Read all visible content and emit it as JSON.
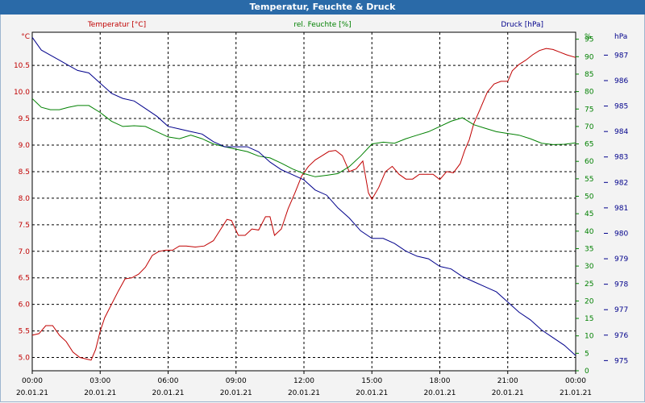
{
  "window": {
    "title": "Temperatur, Feuchte & Druck"
  },
  "chart_data": {
    "type": "line",
    "title": "Temperatur, Feuchte & Druck",
    "x_ticks": [
      {
        "hour": 0,
        "time": "00:00",
        "date": "20.01.21"
      },
      {
        "hour": 3,
        "time": "03:00",
        "date": "20.01.21"
      },
      {
        "hour": 6,
        "time": "06:00",
        "date": "20.01.21"
      },
      {
        "hour": 9,
        "time": "09:00",
        "date": "20.01.21"
      },
      {
        "hour": 12,
        "time": "12:00",
        "date": "20.01.21"
      },
      {
        "hour": 15,
        "time": "15:00",
        "date": "20.01.21"
      },
      {
        "hour": 18,
        "time": "18:00",
        "date": "20.01.21"
      },
      {
        "hour": 21,
        "time": "21:00",
        "date": "20.01.21"
      },
      {
        "hour": 24,
        "time": "00:00",
        "date": "21.01.21"
      }
    ],
    "xlim": [
      0,
      24
    ],
    "axes": {
      "temperature": {
        "unit": "°C",
        "label": "Temperatur [°C]",
        "color": "#c00000",
        "ylim": [
          4.75,
          11.125
        ],
        "ticks": [
          "5.0",
          "5.5",
          "6.0",
          "6.5",
          "7.0",
          "7.5",
          "8.0",
          "8.5",
          "9.0",
          "9.5",
          "10.0",
          "10.5"
        ]
      },
      "humidity": {
        "unit": "%",
        "label": "rel. Feuchte [%]",
        "color": "#008000",
        "ylim": [
          0,
          97
        ],
        "ticks": [
          "0",
          "5",
          "10",
          "15",
          "20",
          "25",
          "30",
          "35",
          "40",
          "45",
          "50",
          "55",
          "60",
          "65",
          "70",
          "75",
          "80",
          "85",
          "90",
          "95",
          "%"
        ]
      },
      "pressure": {
        "unit": "hPa",
        "label": "Druck [hPa]",
        "color": "#00008b",
        "ylim": [
          974.6,
          987.9
        ],
        "ticks": [
          "975",
          "976",
          "977",
          "978",
          "979",
          "980",
          "981",
          "982",
          "983",
          "984",
          "985",
          "986",
          "987"
        ]
      }
    },
    "series": [
      {
        "name": "Temperatur [°C]",
        "axis": "temperature",
        "color": "#c00000",
        "points": [
          [
            0,
            5.42
          ],
          [
            0.3,
            5.45
          ],
          [
            0.6,
            5.6
          ],
          [
            0.9,
            5.6
          ],
          [
            1.2,
            5.42
          ],
          [
            1.5,
            5.3
          ],
          [
            1.8,
            5.1
          ],
          [
            2.1,
            5.0
          ],
          [
            2.4,
            4.97
          ],
          [
            2.6,
            4.95
          ],
          [
            2.8,
            5.15
          ],
          [
            3.0,
            5.5
          ],
          [
            3.2,
            5.75
          ],
          [
            3.5,
            6.0
          ],
          [
            3.8,
            6.25
          ],
          [
            4.1,
            6.48
          ],
          [
            4.4,
            6.5
          ],
          [
            4.7,
            6.57
          ],
          [
            5.0,
            6.7
          ],
          [
            5.3,
            6.92
          ],
          [
            5.6,
            7.0
          ],
          [
            5.9,
            7.02
          ],
          [
            6.2,
            7.02
          ],
          [
            6.5,
            7.1
          ],
          [
            6.8,
            7.1
          ],
          [
            7.2,
            7.08
          ],
          [
            7.6,
            7.1
          ],
          [
            8.0,
            7.2
          ],
          [
            8.3,
            7.4
          ],
          [
            8.6,
            7.6
          ],
          [
            8.8,
            7.58
          ],
          [
            9.1,
            7.3
          ],
          [
            9.4,
            7.3
          ],
          [
            9.7,
            7.42
          ],
          [
            10.0,
            7.4
          ],
          [
            10.3,
            7.65
          ],
          [
            10.5,
            7.65
          ],
          [
            10.7,
            7.3
          ],
          [
            11.0,
            7.42
          ],
          [
            11.3,
            7.8
          ],
          [
            11.6,
            8.1
          ],
          [
            11.9,
            8.42
          ],
          [
            12.2,
            8.6
          ],
          [
            12.5,
            8.72
          ],
          [
            12.8,
            8.8
          ],
          [
            13.1,
            8.88
          ],
          [
            13.4,
            8.9
          ],
          [
            13.7,
            8.8
          ],
          [
            14.0,
            8.5
          ],
          [
            14.3,
            8.55
          ],
          [
            14.6,
            8.7
          ],
          [
            14.85,
            8.1
          ],
          [
            15.0,
            7.98
          ],
          [
            15.3,
            8.2
          ],
          [
            15.6,
            8.5
          ],
          [
            15.9,
            8.6
          ],
          [
            16.2,
            8.45
          ],
          [
            16.5,
            8.36
          ],
          [
            16.8,
            8.36
          ],
          [
            17.1,
            8.45
          ],
          [
            17.4,
            8.45
          ],
          [
            17.7,
            8.45
          ],
          [
            18.0,
            8.35
          ],
          [
            18.3,
            8.5
          ],
          [
            18.6,
            8.48
          ],
          [
            18.9,
            8.65
          ],
          [
            19.1,
            8.9
          ],
          [
            19.3,
            9.1
          ],
          [
            19.5,
            9.4
          ],
          [
            19.8,
            9.7
          ],
          [
            20.1,
            10.0
          ],
          [
            20.4,
            10.15
          ],
          [
            20.7,
            10.2
          ],
          [
            21.0,
            10.2
          ],
          [
            21.2,
            10.4
          ],
          [
            21.5,
            10.52
          ],
          [
            21.8,
            10.6
          ],
          [
            22.1,
            10.7
          ],
          [
            22.4,
            10.78
          ],
          [
            22.7,
            10.82
          ],
          [
            23.0,
            10.8
          ],
          [
            23.3,
            10.75
          ],
          [
            23.6,
            10.7
          ],
          [
            24.0,
            10.65
          ]
        ]
      },
      {
        "name": "rel. Feuchte [%]",
        "axis": "humidity",
        "color": "#008000",
        "points": [
          [
            0,
            78.0
          ],
          [
            0.4,
            75.5
          ],
          [
            0.8,
            74.8
          ],
          [
            1.2,
            74.8
          ],
          [
            1.6,
            75.5
          ],
          [
            2.0,
            76.0
          ],
          [
            2.5,
            76.0
          ],
          [
            3.0,
            74.0
          ],
          [
            3.5,
            71.5
          ],
          [
            4.0,
            70.0
          ],
          [
            4.5,
            70.2
          ],
          [
            5.0,
            70.0
          ],
          [
            5.5,
            68.5
          ],
          [
            6.0,
            67.0
          ],
          [
            6.5,
            66.5
          ],
          [
            7.0,
            67.5
          ],
          [
            7.5,
            66.5
          ],
          [
            8.0,
            65.0
          ],
          [
            8.5,
            64.2
          ],
          [
            9.0,
            63.5
          ],
          [
            9.5,
            62.8
          ],
          [
            10.0,
            61.5
          ],
          [
            10.5,
            61.0
          ],
          [
            11.0,
            59.5
          ],
          [
            11.5,
            57.8
          ],
          [
            12.0,
            56.5
          ],
          [
            12.5,
            55.6
          ],
          [
            13.0,
            56.0
          ],
          [
            13.5,
            56.5
          ],
          [
            14.0,
            58.5
          ],
          [
            14.5,
            61.5
          ],
          [
            15.0,
            65.0
          ],
          [
            15.5,
            65.5
          ],
          [
            16.0,
            65.2
          ],
          [
            16.5,
            66.5
          ],
          [
            17.0,
            67.5
          ],
          [
            17.5,
            68.5
          ],
          [
            18.0,
            70.0
          ],
          [
            18.5,
            71.5
          ],
          [
            19.0,
            72.5
          ],
          [
            19.5,
            70.5
          ],
          [
            20.0,
            69.5
          ],
          [
            20.5,
            68.5
          ],
          [
            21.0,
            68.0
          ],
          [
            21.5,
            67.5
          ],
          [
            22.0,
            66.5
          ],
          [
            22.5,
            65.2
          ],
          [
            23.0,
            64.8
          ],
          [
            23.5,
            64.9
          ],
          [
            24.0,
            65.3
          ]
        ]
      },
      {
        "name": "Druck [hPa]",
        "axis": "pressure",
        "color": "#00008b",
        "points": [
          [
            0,
            987.7
          ],
          [
            0.4,
            987.2
          ],
          [
            0.8,
            987.0
          ],
          [
            1.2,
            986.8
          ],
          [
            1.6,
            986.6
          ],
          [
            2.0,
            986.4
          ],
          [
            2.5,
            986.3
          ],
          [
            3.0,
            985.9
          ],
          [
            3.5,
            985.5
          ],
          [
            4.0,
            985.3
          ],
          [
            4.5,
            985.2
          ],
          [
            5.0,
            984.9
          ],
          [
            5.5,
            984.6
          ],
          [
            6.0,
            984.2
          ],
          [
            6.5,
            984.1
          ],
          [
            7.0,
            984.0
          ],
          [
            7.5,
            983.9
          ],
          [
            8.0,
            983.6
          ],
          [
            8.5,
            983.4
          ],
          [
            9.0,
            983.4
          ],
          [
            9.5,
            983.4
          ],
          [
            10.0,
            983.2
          ],
          [
            10.5,
            982.8
          ],
          [
            11.0,
            982.5
          ],
          [
            11.5,
            982.3
          ],
          [
            12.0,
            982.1
          ],
          [
            12.5,
            981.7
          ],
          [
            13.0,
            981.5
          ],
          [
            13.5,
            981.0
          ],
          [
            14.0,
            980.6
          ],
          [
            14.5,
            980.1
          ],
          [
            15.0,
            979.8
          ],
          [
            15.5,
            979.8
          ],
          [
            16.0,
            979.6
          ],
          [
            16.5,
            979.3
          ],
          [
            17.0,
            979.1
          ],
          [
            17.5,
            979.0
          ],
          [
            18.0,
            978.7
          ],
          [
            18.5,
            978.6
          ],
          [
            19.0,
            978.3
          ],
          [
            19.5,
            978.1
          ],
          [
            20.0,
            977.9
          ],
          [
            20.5,
            977.7
          ],
          [
            21.0,
            977.3
          ],
          [
            21.5,
            976.9
          ],
          [
            22.0,
            976.6
          ],
          [
            22.5,
            976.2
          ],
          [
            23.0,
            975.9
          ],
          [
            23.5,
            975.6
          ],
          [
            24.0,
            975.2
          ]
        ]
      }
    ]
  }
}
